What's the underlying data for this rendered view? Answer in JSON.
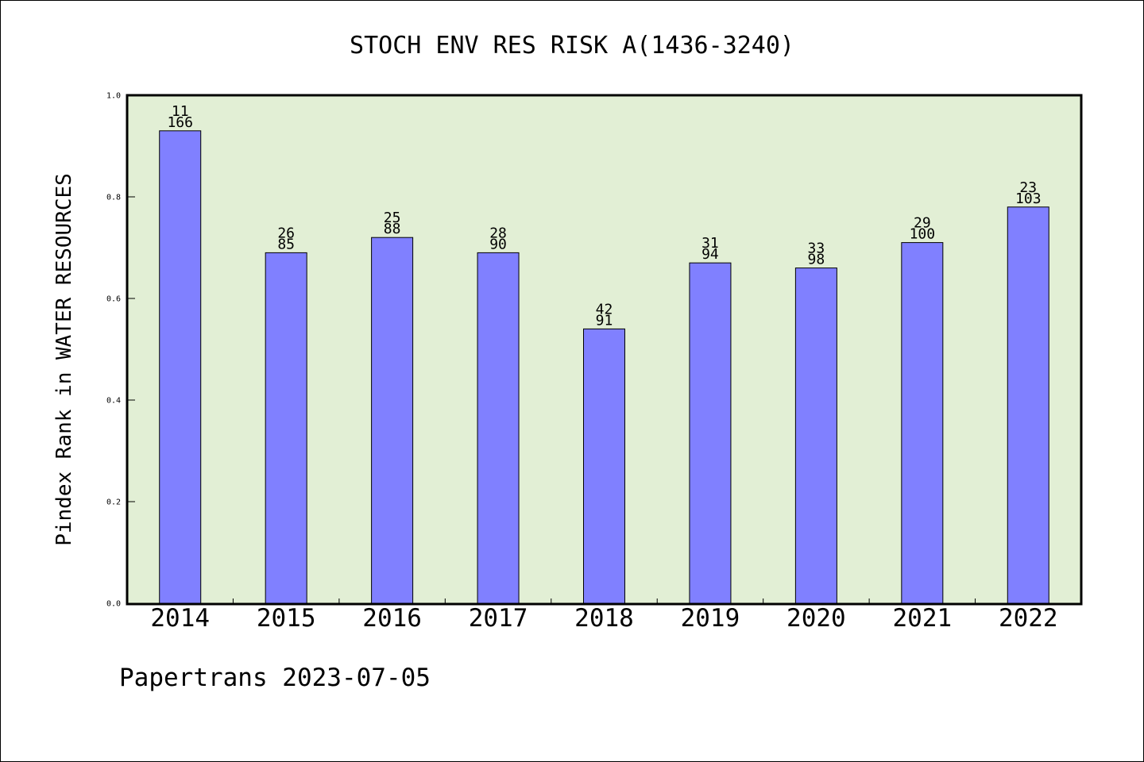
{
  "chart_data": {
    "type": "bar",
    "title": "STOCH ENV RES RISK A(1436-3240)",
    "ylabel": "Pindex Rank in WATER RESOURCES",
    "xlabel": "",
    "ylim": [
      0.0,
      1.0
    ],
    "yticks": [
      "0.0",
      "0.2",
      "0.4",
      "0.6",
      "0.8",
      "1.0"
    ],
    "categories": [
      "2014",
      "2015",
      "2016",
      "2017",
      "2018",
      "2019",
      "2020",
      "2021",
      "2022"
    ],
    "values": [
      0.93,
      0.69,
      0.72,
      0.69,
      0.54,
      0.67,
      0.66,
      0.71,
      0.78
    ],
    "label_top": [
      "11",
      "26",
      "25",
      "28",
      "42",
      "31",
      "33",
      "29",
      "23"
    ],
    "label_bottom": [
      "166",
      "85",
      "88",
      "90",
      "91",
      "94",
      "98",
      "100",
      "103"
    ],
    "grid": false,
    "colors": {
      "bar": "#8080ff",
      "plot_background": "#e2efd5",
      "axis": "#000000"
    }
  },
  "footer": "Papertrans 2023-07-05"
}
